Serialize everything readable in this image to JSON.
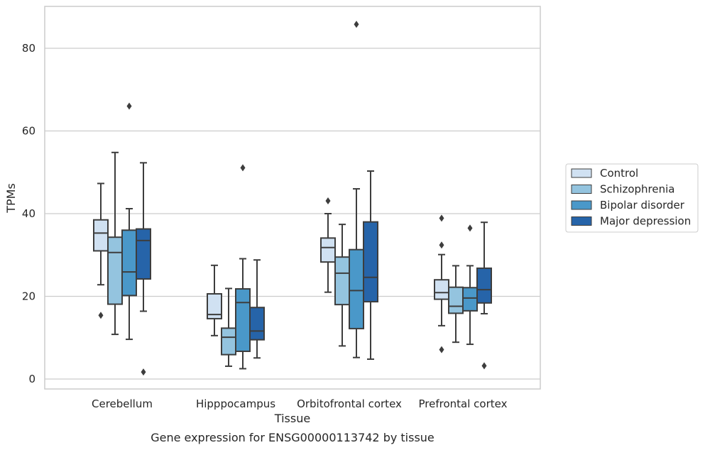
{
  "chart_data": {
    "type": "box",
    "caption": "Gene expression for ENSG00000113742 by tissue",
    "xlabel": "Tissue",
    "ylabel": "TPMs",
    "ylim": [
      -2.3,
      90.5
    ],
    "yticks": [
      0,
      20,
      40,
      60,
      80
    ],
    "grid": "horizontal",
    "legend_position": "right",
    "categories": [
      "Cerebellum",
      "Hipppocampus",
      "Orbitofrontal cortex",
      "Prefrontal cortex"
    ],
    "series": [
      {
        "name": "Control",
        "color": "#d0e1f2",
        "boxes": [
          {
            "whisker_low": 22.8,
            "q1": 31.0,
            "median": 35.3,
            "q3": 38.5,
            "whisker_high": 47.3,
            "outliers": [
              15.4
            ]
          },
          {
            "whisker_low": 10.5,
            "q1": 14.6,
            "median": 15.6,
            "q3": 20.6,
            "whisker_high": 27.5,
            "outliers": []
          },
          {
            "whisker_low": 21.0,
            "q1": 28.3,
            "median": 31.8,
            "q3": 34.1,
            "whisker_high": 40.0,
            "outliers": [
              43.1
            ]
          },
          {
            "whisker_low": 12.9,
            "q1": 19.3,
            "median": 20.9,
            "q3": 24.0,
            "whisker_high": 30.1,
            "outliers": [
              7.1,
              32.4,
              38.9
            ]
          }
        ]
      },
      {
        "name": "Schizophrenia",
        "color": "#94c4df",
        "boxes": [
          {
            "whisker_low": 10.8,
            "q1": 18.1,
            "median": 30.6,
            "q3": 34.3,
            "whisker_high": 54.8,
            "outliers": []
          },
          {
            "whisker_low": 3.1,
            "q1": 5.9,
            "median": 10.1,
            "q3": 12.3,
            "whisker_high": 21.9,
            "outliers": []
          },
          {
            "whisker_low": 8.0,
            "q1": 18.0,
            "median": 25.6,
            "q3": 29.5,
            "whisker_high": 37.4,
            "outliers": []
          },
          {
            "whisker_low": 8.9,
            "q1": 15.9,
            "median": 17.6,
            "q3": 22.2,
            "whisker_high": 27.4,
            "outliers": []
          }
        ]
      },
      {
        "name": "Bipolar disorder",
        "color": "#4a98c9",
        "boxes": [
          {
            "whisker_low": 9.6,
            "q1": 20.2,
            "median": 25.9,
            "q3": 36.0,
            "whisker_high": 41.2,
            "outliers": [
              66.0
            ]
          },
          {
            "whisker_low": 2.5,
            "q1": 6.7,
            "median": 18.5,
            "q3": 21.8,
            "whisker_high": 29.1,
            "outliers": [
              51.1
            ]
          },
          {
            "whisker_low": 5.2,
            "q1": 12.2,
            "median": 21.4,
            "q3": 31.3,
            "whisker_high": 46.0,
            "outliers": [
              85.8
            ]
          },
          {
            "whisker_low": 8.4,
            "q1": 16.5,
            "median": 19.6,
            "q3": 22.1,
            "whisker_high": 27.4,
            "outliers": [
              36.5
            ]
          }
        ]
      },
      {
        "name": "Major depression",
        "color": "#2664a9",
        "boxes": [
          {
            "whisker_low": 16.4,
            "q1": 24.2,
            "median": 33.5,
            "q3": 36.3,
            "whisker_high": 52.3,
            "outliers": [
              1.7
            ]
          },
          {
            "whisker_low": 5.1,
            "q1": 9.5,
            "median": 11.6,
            "q3": 17.3,
            "whisker_high": 28.8,
            "outliers": []
          },
          {
            "whisker_low": 4.8,
            "q1": 18.7,
            "median": 24.6,
            "q3": 38.0,
            "whisker_high": 50.3,
            "outliers": []
          },
          {
            "whisker_low": 15.8,
            "q1": 18.4,
            "median": 21.6,
            "q3": 26.8,
            "whisker_high": 37.9,
            "outliers": [
              3.2
            ]
          }
        ]
      }
    ]
  }
}
